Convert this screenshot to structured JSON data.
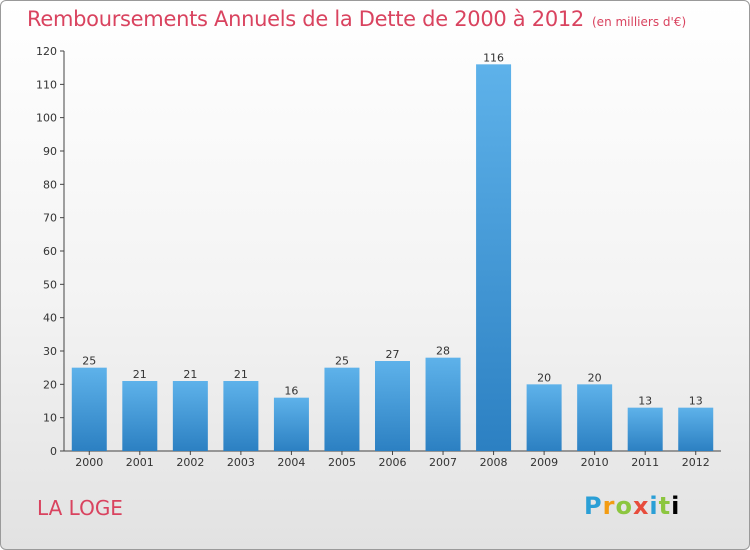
{
  "header": {
    "title": "Remboursements Annuels de la Dette de 2000 à 2012",
    "unit": "(en milliers d'€)"
  },
  "footer": {
    "commune": "LA LOGE",
    "brand": "Proxiti"
  },
  "colors": {
    "title": "#d9435f",
    "bar_light": "#5eb2ea",
    "bar_dark": "#2c80c2"
  },
  "chart_data": {
    "type": "bar",
    "title": "Remboursements Annuels de la Dette de 2000 à 2012",
    "categories": [
      "2000",
      "2001",
      "2002",
      "2003",
      "2004",
      "2005",
      "2006",
      "2007",
      "2008",
      "2009",
      "2010",
      "2011",
      "2012"
    ],
    "values": [
      25,
      21,
      21,
      21,
      16,
      25,
      27,
      28,
      116,
      20,
      20,
      13,
      13
    ],
    "ylim": [
      0,
      120
    ],
    "yticks": [
      0,
      10,
      20,
      30,
      40,
      50,
      60,
      70,
      80,
      90,
      100,
      110,
      120
    ],
    "grid": false,
    "xlabel": "",
    "ylabel": ""
  }
}
